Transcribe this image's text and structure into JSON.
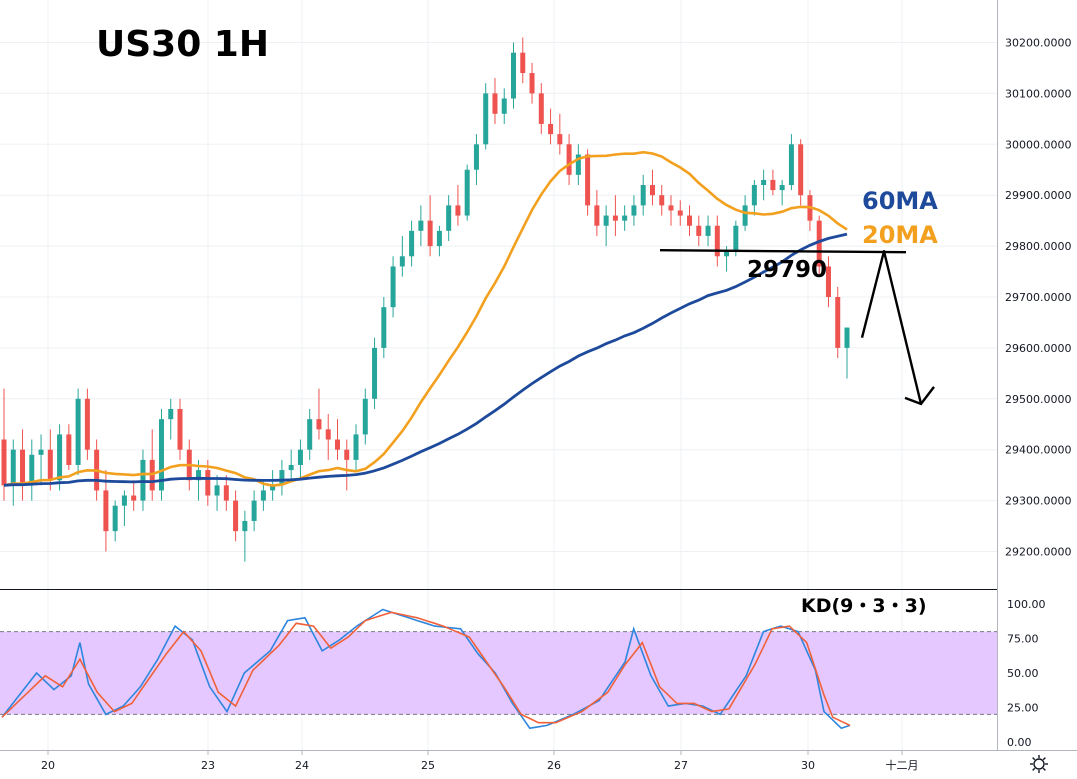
{
  "chart_data": {
    "type": "candlestick",
    "title": "US30 1H",
    "price_axis": {
      "ticks": [
        "30200.0000",
        "30100.0000",
        "30000.0000",
        "29900.0000",
        "29800.0000",
        "29700.0000",
        "29600.0000",
        "29500.0000",
        "29400.0000",
        "29300.0000",
        "29200.0000"
      ],
      "range": [
        29080,
        30290
      ]
    },
    "time_axis": {
      "ticks": [
        "20",
        "23",
        "24",
        "25",
        "26",
        "27",
        "30",
        "十二月"
      ]
    },
    "ma_labels": {
      "ma60": "60MA",
      "ma20": "20MA"
    },
    "colors": {
      "up": "#26a69a",
      "down": "#ef5350",
      "ma60": "#1e4a9b",
      "ma20": "#f2a01e",
      "kd_k": "#2e86de",
      "kd_d": "#f0613a",
      "kd_band": "#e5c8ff"
    },
    "support_level": {
      "label": "29790",
      "price": 29790
    },
    "projection_arrow": {
      "prices": [
        29620,
        29790,
        29490
      ]
    },
    "kd": {
      "label": "KD(9・3・3)",
      "ticks": [
        "100.00",
        "75.00",
        "50.00",
        "25.00",
        "0.00"
      ],
      "bands": [
        80,
        20
      ],
      "k_anchors": [
        [
          0,
          18
        ],
        [
          3,
          42
        ],
        [
          4,
          50
        ],
        [
          6,
          38
        ],
        [
          8,
          48
        ],
        [
          9,
          72
        ],
        [
          10,
          42
        ],
        [
          12,
          20
        ],
        [
          14,
          26
        ],
        [
          16,
          40
        ],
        [
          18,
          60
        ],
        [
          20,
          84
        ],
        [
          22,
          74
        ],
        [
          24,
          40
        ],
        [
          26,
          22
        ],
        [
          28,
          50
        ],
        [
          31,
          66
        ],
        [
          33,
          88
        ],
        [
          35,
          90
        ],
        [
          37,
          66
        ],
        [
          39,
          74
        ],
        [
          41,
          84
        ],
        [
          44,
          96
        ],
        [
          47,
          90
        ],
        [
          50,
          84
        ],
        [
          53,
          82
        ],
        [
          55,
          64
        ],
        [
          57,
          50
        ],
        [
          59,
          28
        ],
        [
          61,
          10
        ],
        [
          63,
          12
        ],
        [
          66,
          20
        ],
        [
          69,
          30
        ],
        [
          72,
          58
        ],
        [
          73,
          82
        ],
        [
          75,
          48
        ],
        [
          77,
          26
        ],
        [
          79,
          28
        ],
        [
          81,
          26
        ],
        [
          83,
          20
        ],
        [
          86,
          48
        ],
        [
          88,
          80
        ],
        [
          90,
          84
        ],
        [
          92,
          80
        ],
        [
          94,
          52
        ],
        [
          95,
          22
        ],
        [
          97,
          10
        ],
        [
          98,
          12
        ]
      ],
      "d_anchors": [
        [
          0,
          18
        ],
        [
          3,
          36
        ],
        [
          5,
          48
        ],
        [
          7,
          40
        ],
        [
          9,
          60
        ],
        [
          11,
          36
        ],
        [
          13,
          22
        ],
        [
          15,
          28
        ],
        [
          17,
          46
        ],
        [
          19,
          64
        ],
        [
          21,
          80
        ],
        [
          23,
          66
        ],
        [
          25,
          36
        ],
        [
          27,
          26
        ],
        [
          29,
          52
        ],
        [
          32,
          70
        ],
        [
          34,
          86
        ],
        [
          36,
          84
        ],
        [
          38,
          68
        ],
        [
          40,
          76
        ],
        [
          42,
          88
        ],
        [
          45,
          94
        ],
        [
          48,
          90
        ],
        [
          51,
          84
        ],
        [
          54,
          76
        ],
        [
          56,
          58
        ],
        [
          58,
          40
        ],
        [
          60,
          20
        ],
        [
          62,
          14
        ],
        [
          64,
          14
        ],
        [
          67,
          22
        ],
        [
          70,
          36
        ],
        [
          72,
          56
        ],
        [
          74,
          72
        ],
        [
          76,
          40
        ],
        [
          78,
          28
        ],
        [
          80,
          28
        ],
        [
          82,
          22
        ],
        [
          84,
          24
        ],
        [
          87,
          56
        ],
        [
          89,
          82
        ],
        [
          91,
          84
        ],
        [
          93,
          72
        ],
        [
          95,
          34
        ],
        [
          96,
          18
        ],
        [
          98,
          12
        ]
      ]
    },
    "candles": [
      [
        29420,
        29520,
        29300,
        29330
      ],
      [
        29330,
        29420,
        29290,
        29400
      ],
      [
        29400,
        29440,
        29300,
        29330
      ],
      [
        29330,
        29420,
        29300,
        29390
      ],
      [
        29390,
        29430,
        29330,
        29400
      ],
      [
        29400,
        29440,
        29320,
        29340
      ],
      [
        29340,
        29450,
        29320,
        29430
      ],
      [
        29430,
        29450,
        29360,
        29370
      ],
      [
        29370,
        29520,
        29350,
        29500
      ],
      [
        29500,
        29520,
        29380,
        29400
      ],
      [
        29400,
        29420,
        29300,
        29320
      ],
      [
        29320,
        29360,
        29200,
        29240
      ],
      [
        29240,
        29300,
        29220,
        29290
      ],
      [
        29290,
        29320,
        29250,
        29310
      ],
      [
        29310,
        29340,
        29280,
        29300
      ],
      [
        29300,
        29400,
        29280,
        29380
      ],
      [
        29380,
        29440,
        29300,
        29320
      ],
      [
        29320,
        29480,
        29300,
        29460
      ],
      [
        29460,
        29500,
        29420,
        29480
      ],
      [
        29480,
        29500,
        29380,
        29400
      ],
      [
        29400,
        29420,
        29320,
        29340
      ],
      [
        29340,
        29380,
        29300,
        29360
      ],
      [
        29360,
        29380,
        29290,
        29310
      ],
      [
        29310,
        29350,
        29280,
        29330
      ],
      [
        29330,
        29350,
        29280,
        29300
      ],
      [
        29300,
        29320,
        29220,
        29240
      ],
      [
        29240,
        29280,
        29180,
        29260
      ],
      [
        29260,
        29320,
        29240,
        29300
      ],
      [
        29300,
        29340,
        29280,
        29320
      ],
      [
        29320,
        29360,
        29300,
        29330
      ],
      [
        29330,
        29380,
        29310,
        29360
      ],
      [
        29360,
        29400,
        29340,
        29370
      ],
      [
        29370,
        29420,
        29340,
        29400
      ],
      [
        29400,
        29480,
        29380,
        29460
      ],
      [
        29460,
        29520,
        29420,
        29440
      ],
      [
        29440,
        29470,
        29380,
        29420
      ],
      [
        29420,
        29460,
        29380,
        29400
      ],
      [
        29400,
        29420,
        29320,
        29380
      ],
      [
        29380,
        29450,
        29360,
        29430
      ],
      [
        29430,
        29520,
        29410,
        29500
      ],
      [
        29500,
        29620,
        29480,
        29600
      ],
      [
        29600,
        29700,
        29580,
        29680
      ],
      [
        29680,
        29780,
        29660,
        29760
      ],
      [
        29760,
        29820,
        29740,
        29780
      ],
      [
        29780,
        29850,
        29760,
        29830
      ],
      [
        29830,
        29880,
        29800,
        29850
      ],
      [
        29850,
        29900,
        29780,
        29800
      ],
      [
        29800,
        29840,
        29780,
        29830
      ],
      [
        29830,
        29900,
        29810,
        29880
      ],
      [
        29880,
        29920,
        29840,
        29860
      ],
      [
        29860,
        29960,
        29850,
        29950
      ],
      [
        29950,
        30020,
        29920,
        30000
      ],
      [
        30000,
        30120,
        29990,
        30100
      ],
      [
        30100,
        30130,
        30040,
        30060
      ],
      [
        30060,
        30110,
        30040,
        30090
      ],
      [
        30090,
        30200,
        30070,
        30180
      ],
      [
        30180,
        30210,
        30120,
        30140
      ],
      [
        30140,
        30160,
        30080,
        30100
      ],
      [
        30100,
        30120,
        30020,
        30040
      ],
      [
        30040,
        30070,
        30000,
        30020
      ],
      [
        30020,
        30060,
        29980,
        30000
      ],
      [
        30000,
        30020,
        29920,
        29940
      ],
      [
        29940,
        30000,
        29920,
        29980
      ],
      [
        29980,
        29990,
        29860,
        29880
      ],
      [
        29880,
        29910,
        29820,
        29840
      ],
      [
        29840,
        29880,
        29800,
        29860
      ],
      [
        29860,
        29900,
        29820,
        29850
      ],
      [
        29850,
        29880,
        29830,
        29860
      ],
      [
        29860,
        29900,
        29840,
        29880
      ],
      [
        29880,
        29940,
        29860,
        29920
      ],
      [
        29920,
        29950,
        29880,
        29900
      ],
      [
        29900,
        29920,
        29860,
        29880
      ],
      [
        29880,
        29900,
        29840,
        29870
      ],
      [
        29870,
        29890,
        29840,
        29860
      ],
      [
        29860,
        29880,
        29820,
        29840
      ],
      [
        29840,
        29860,
        29800,
        29820
      ],
      [
        29820,
        29860,
        29800,
        29840
      ],
      [
        29840,
        29860,
        29760,
        29780
      ],
      [
        29780,
        29800,
        29750,
        29790
      ],
      [
        29790,
        29850,
        29780,
        29840
      ],
      [
        29840,
        29900,
        29830,
        29880
      ],
      [
        29880,
        29930,
        29860,
        29920
      ],
      [
        29920,
        29950,
        29890,
        29930
      ],
      [
        29930,
        29950,
        29900,
        29910
      ],
      [
        29910,
        29930,
        29880,
        29920
      ],
      [
        29920,
        30020,
        29910,
        30000
      ],
      [
        30000,
        30010,
        29880,
        29900
      ],
      [
        29900,
        29910,
        29830,
        29850
      ],
      [
        29850,
        29860,
        29740,
        29760
      ],
      [
        29760,
        29780,
        29680,
        29700
      ],
      [
        29700,
        29720,
        29580,
        29600
      ],
      [
        29600,
        29640,
        29540,
        29640
      ]
    ]
  }
}
